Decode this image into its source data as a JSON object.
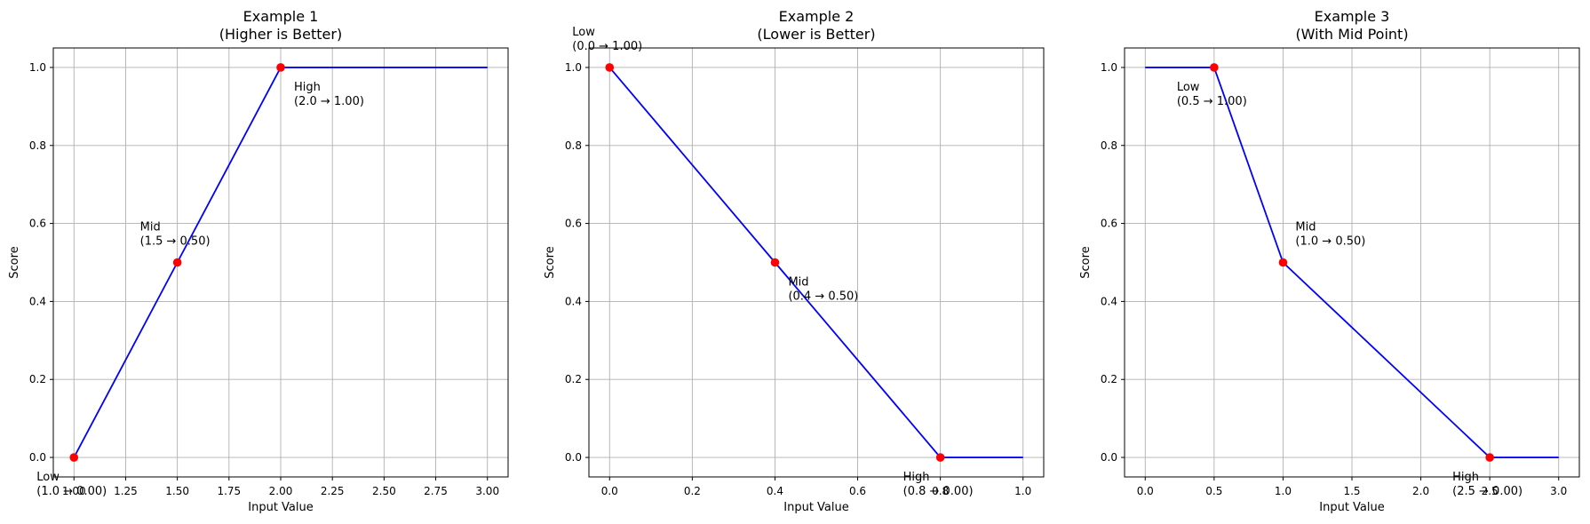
{
  "colors": {
    "line": "#0000ff",
    "marker": "#ff0000",
    "grid": "#b0b0b0",
    "axes": "#000000",
    "background": "#ffffff"
  },
  "chart_data": [
    {
      "type": "line",
      "title_line1": "Example 1",
      "title_line2": "(Higher is Better)",
      "xlabel": "Input Value",
      "ylabel": "Score",
      "xlim": [
        0.9,
        3.1
      ],
      "ylim": [
        -0.05,
        1.05
      ],
      "xticks": [
        1.0,
        1.25,
        1.5,
        1.75,
        2.0,
        2.25,
        2.5,
        2.75,
        3.0
      ],
      "xtick_labels": [
        "1.00",
        "1.25",
        "1.50",
        "1.75",
        "2.00",
        "2.25",
        "2.50",
        "2.75",
        "3.00"
      ],
      "yticks": [
        0.0,
        0.2,
        0.4,
        0.6,
        0.8,
        1.0
      ],
      "ytick_labels": [
        "0.0",
        "0.2",
        "0.4",
        "0.6",
        "0.8",
        "1.0"
      ],
      "grid": true,
      "line": {
        "x": [
          1.0,
          1.5,
          2.0,
          3.0
        ],
        "y": [
          0.0,
          0.5,
          1.0,
          1.0
        ]
      },
      "points": [
        {
          "x": 1.0,
          "y": 0.0,
          "name": "Low",
          "label": "(1.0 → 0.00)",
          "anchor": "below-left"
        },
        {
          "x": 1.5,
          "y": 0.5,
          "name": "Mid",
          "label": "(1.5 → 0.50)",
          "anchor": "above-left"
        },
        {
          "x": 2.0,
          "y": 1.0,
          "name": "High",
          "label": "(2.0 → 1.00)",
          "anchor": "below-right"
        }
      ]
    },
    {
      "type": "line",
      "title_line1": "Example 2",
      "title_line2": "(Lower is Better)",
      "xlabel": "Input Value",
      "ylabel": "Score",
      "xlim": [
        -0.05,
        1.05
      ],
      "ylim": [
        -0.05,
        1.05
      ],
      "xticks": [
        0.0,
        0.2,
        0.4,
        0.6,
        0.8,
        1.0
      ],
      "xtick_labels": [
        "0.0",
        "0.2",
        "0.4",
        "0.6",
        "0.8",
        "1.0"
      ],
      "yticks": [
        0.0,
        0.2,
        0.4,
        0.6,
        0.8,
        1.0
      ],
      "ytick_labels": [
        "0.0",
        "0.2",
        "0.4",
        "0.6",
        "0.8",
        "1.0"
      ],
      "grid": true,
      "line": {
        "x": [
          0.0,
          0.4,
          0.8,
          1.0
        ],
        "y": [
          1.0,
          0.5,
          0.0,
          0.0
        ]
      },
      "points": [
        {
          "x": 0.0,
          "y": 1.0,
          "name": "Low",
          "label": "(0.0 → 1.00)",
          "anchor": "above-left"
        },
        {
          "x": 0.4,
          "y": 0.5,
          "name": "Mid",
          "label": "(0.4 → 0.50)",
          "anchor": "below-right"
        },
        {
          "x": 0.8,
          "y": 0.0,
          "name": "High",
          "label": "(0.8 → 0.00)",
          "anchor": "below-left"
        }
      ]
    },
    {
      "type": "line",
      "title_line1": "Example 3",
      "title_line2": "(With Mid Point)",
      "xlabel": "Input Value",
      "ylabel": "Score",
      "xlim": [
        -0.15,
        3.15
      ],
      "ylim": [
        -0.05,
        1.05
      ],
      "xticks": [
        0.0,
        0.5,
        1.0,
        1.5,
        2.0,
        2.5,
        3.0
      ],
      "xtick_labels": [
        "0.0",
        "0.5",
        "1.0",
        "1.5",
        "2.0",
        "2.5",
        "3.0"
      ],
      "yticks": [
        0.0,
        0.2,
        0.4,
        0.6,
        0.8,
        1.0
      ],
      "ytick_labels": [
        "0.0",
        "0.2",
        "0.4",
        "0.6",
        "0.8",
        "1.0"
      ],
      "grid": true,
      "line": {
        "x": [
          0.0,
          0.5,
          1.0,
          2.5,
          3.0
        ],
        "y": [
          1.0,
          1.0,
          0.5,
          0.0,
          0.0
        ]
      },
      "points": [
        {
          "x": 0.5,
          "y": 1.0,
          "name": "Low",
          "label": "(0.5 → 1.00)",
          "anchor": "below-left"
        },
        {
          "x": 1.0,
          "y": 0.5,
          "name": "Mid",
          "label": "(1.0 → 0.50)",
          "anchor": "above-right"
        },
        {
          "x": 2.5,
          "y": 0.0,
          "name": "High",
          "label": "(2.5 → 0.00)",
          "anchor": "below-left"
        }
      ]
    }
  ]
}
